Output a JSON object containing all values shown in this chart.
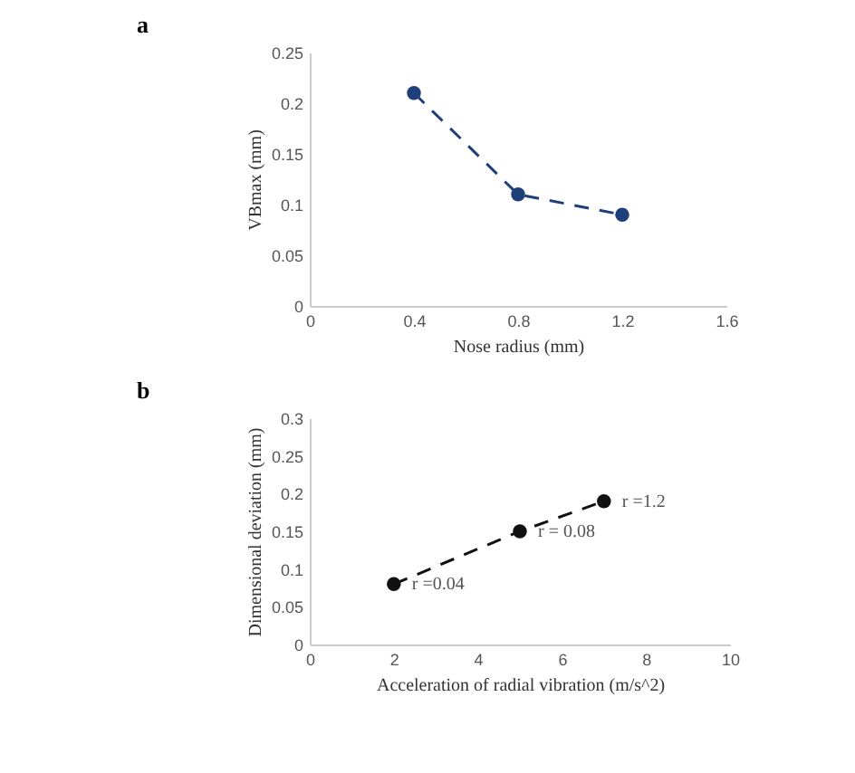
{
  "chart_data": [
    {
      "type": "line",
      "title": "a",
      "xlabel": "Nose radius (mm)",
      "ylabel": "VBmax  (mm)",
      "x": [
        0.4,
        0.8,
        1.2
      ],
      "series": [
        {
          "color": "#1f3f7a",
          "values": [
            0.21,
            0.11,
            0.09
          ]
        }
      ],
      "xlim": [
        0,
        1.6
      ],
      "xticks": [
        0,
        0.4,
        0.8,
        1.2,
        1.6
      ],
      "ylim": [
        0,
        0.25
      ],
      "yticks": [
        0,
        0.05,
        0.1,
        0.15,
        0.2,
        0.25
      ],
      "grid": false,
      "marker": "circle",
      "line_style": "dashed"
    },
    {
      "type": "line",
      "title": "b",
      "xlabel": "Acceleration of radial vibration (m/s^2)",
      "ylabel": "Dimensional deviation (mm)",
      "x": [
        2,
        5,
        7
      ],
      "series": [
        {
          "color": "#111111",
          "values": [
            0.08,
            0.15,
            0.19
          ]
        }
      ],
      "xlim": [
        0,
        10
      ],
      "xticks": [
        0,
        2,
        4,
        6,
        8,
        10
      ],
      "ylim": [
        0,
        0.3
      ],
      "yticks": [
        0,
        0.05,
        0.1,
        0.15,
        0.2,
        0.25,
        0.3
      ],
      "grid": false,
      "marker": "circle",
      "line_style": "dashed",
      "annotations": [
        {
          "text": "r =0.04",
          "x": 2,
          "y": 0.08
        },
        {
          "text": "r = 0.08",
          "x": 5,
          "y": 0.15
        },
        {
          "text": "r =1.2",
          "x": 7,
          "y": 0.19
        }
      ]
    }
  ]
}
